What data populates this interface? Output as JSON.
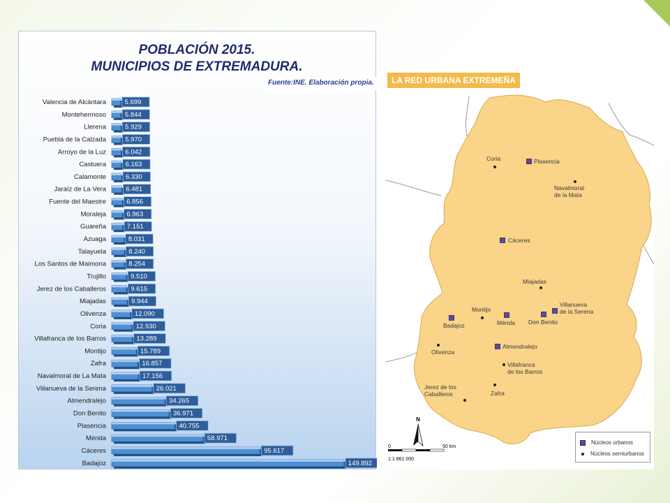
{
  "chart_data": {
    "type": "bar",
    "orientation": "horizontal",
    "title_line1": "POBLACIÓN 2015.",
    "title_line2": "MUNICIPIOS DE EXTREMADURA.",
    "source": "Fuente:INE. Elaboración propia.",
    "categories": [
      "Valencia de Alcántara",
      "Montehermoso",
      "Llerena",
      "Puebla de la Calzada",
      "Arroyo de la Luz",
      "Castuera",
      "Calamonte",
      "Jaraíz de La Vera",
      "Fuente del Maestre",
      "Moraleja",
      "Guareña",
      "Azuaga",
      "Talayuela",
      "Los Santos de Maimona",
      "Trujillo",
      "Jerez de los Caballeros",
      "Miajadas",
      "Olivenza",
      "Coria",
      "Villafranca de los Barros",
      "Montijo",
      "Zafra",
      "Navalmoral de La Mata",
      "Villanueva de la Serena",
      "Almendralejo",
      "Don Benito",
      "Plasencia",
      "Mérida",
      "Cáceres",
      "Badajoz"
    ],
    "values": [
      5699,
      5844,
      5929,
      5970,
      6042,
      6163,
      6330,
      6481,
      6856,
      6963,
      7151,
      8031,
      8240,
      8254,
      9510,
      9615,
      9944,
      12090,
      12930,
      13289,
      15789,
      16857,
      17156,
      26021,
      34265,
      36971,
      40755,
      58971,
      95617,
      149892
    ],
    "labels": [
      "5.699",
      "5.844",
      "5.929",
      "5.970",
      "6.042",
      "6.163",
      "6.330",
      "6.481",
      "6.856",
      "6.963",
      "7.151",
      "8.031",
      "8.240",
      "8.254",
      "9.510",
      "9.615",
      "9.944",
      "12.090",
      "12.930",
      "13.289",
      "15.789",
      "16.857",
      "17.156",
      "26.021",
      "34.265",
      "36.971",
      "40.755",
      "58.971",
      "95.617",
      "149.892"
    ],
    "xlim": [
      0,
      150000
    ],
    "grid": false,
    "legend": "none",
    "bar_color": "#4f8fd3"
  },
  "map": {
    "title": "LA RED URBANA EXTREMEÑA",
    "scale_zero": "0",
    "scale_label": "50 km",
    "scale_ratio": "1:1 861 000",
    "north": "N",
    "legend_urban": "Núcleos urbanos",
    "legend_semi": "Núcleos semiurbanos",
    "fill_color": "#f9d489",
    "urban_color": "#5b4c97",
    "places": [
      {
        "name": "Coria",
        "type": "semi"
      },
      {
        "name": "Plasencia",
        "type": "urban"
      },
      {
        "name": "Navalmoral",
        "name2": "de la Mata",
        "type": "semi"
      },
      {
        "name": "Cáceres",
        "type": "urban"
      },
      {
        "name": "Miajadas",
        "type": "semi"
      },
      {
        "name": "Villanueva",
        "name2": "de la Serena",
        "type": "urban"
      },
      {
        "name": "Montijo",
        "type": "semi"
      },
      {
        "name": "Badajoz",
        "type": "urban"
      },
      {
        "name": "Mérida",
        "type": "urban"
      },
      {
        "name": "Don Benito",
        "type": "urban"
      },
      {
        "name": "Almendralejo",
        "type": "urban"
      },
      {
        "name": "Olivenza",
        "type": "semi"
      },
      {
        "name": "Villafranca",
        "name2": "de los Barros",
        "type": "semi"
      },
      {
        "name": "Jerez de los",
        "name2": "Caballeros",
        "type": "semi"
      },
      {
        "name": "Zafra",
        "type": "semi"
      }
    ]
  }
}
